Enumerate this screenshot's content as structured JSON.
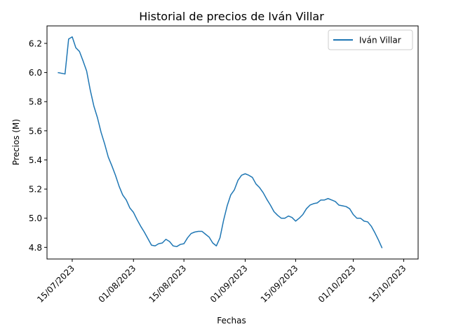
{
  "chart_data": {
    "type": "line",
    "title": "Historial de precios de Iván Villar",
    "xlabel": "Fechas",
    "ylabel": "Precios (M)",
    "x_tick_labels": [
      "15/07/2023",
      "01/08/2023",
      "15/08/2023",
      "01/09/2023",
      "15/09/2023",
      "01/10/2023",
      "15/10/2023"
    ],
    "y_tick_labels": [
      "4.8",
      "5.0",
      "5.2",
      "5.4",
      "5.6",
      "5.8",
      "6.0",
      "6.2"
    ],
    "ylim": [
      4.72,
      6.32
    ],
    "xlim": [
      "2023-07-08",
      "2023-10-19"
    ],
    "grid": false,
    "legend_position": "top-right",
    "series": [
      {
        "name": "Iván Villar",
        "color": "#1f77b4",
        "points": [
          [
            "2023-07-11",
            6.0
          ],
          [
            "2023-07-13",
            5.99
          ],
          [
            "2023-07-14",
            6.23
          ],
          [
            "2023-07-15",
            6.245
          ],
          [
            "2023-07-16",
            6.17
          ],
          [
            "2023-07-17",
            6.145
          ],
          [
            "2023-07-18",
            6.08
          ],
          [
            "2023-07-19",
            6.01
          ],
          [
            "2023-07-20",
            5.88
          ],
          [
            "2023-07-21",
            5.77
          ],
          [
            "2023-07-22",
            5.69
          ],
          [
            "2023-07-23",
            5.59
          ],
          [
            "2023-07-24",
            5.51
          ],
          [
            "2023-07-25",
            5.42
          ],
          [
            "2023-07-26",
            5.36
          ],
          [
            "2023-07-27",
            5.295
          ],
          [
            "2023-07-28",
            5.22
          ],
          [
            "2023-07-29",
            5.16
          ],
          [
            "2023-07-30",
            5.125
          ],
          [
            "2023-07-31",
            5.07
          ],
          [
            "2023-08-01",
            5.04
          ],
          [
            "2023-08-02",
            4.99
          ],
          [
            "2023-08-03",
            4.945
          ],
          [
            "2023-08-04",
            4.905
          ],
          [
            "2023-08-05",
            4.86
          ],
          [
            "2023-08-06",
            4.815
          ],
          [
            "2023-08-07",
            4.81
          ],
          [
            "2023-08-08",
            4.825
          ],
          [
            "2023-08-09",
            4.83
          ],
          [
            "2023-08-10",
            4.855
          ],
          [
            "2023-08-11",
            4.84
          ],
          [
            "2023-08-12",
            4.81
          ],
          [
            "2023-08-13",
            4.805
          ],
          [
            "2023-08-14",
            4.82
          ],
          [
            "2023-08-15",
            4.825
          ],
          [
            "2023-08-16",
            4.865
          ],
          [
            "2023-08-17",
            4.895
          ],
          [
            "2023-08-18",
            4.905
          ],
          [
            "2023-08-19",
            4.91
          ],
          [
            "2023-08-20",
            4.91
          ],
          [
            "2023-08-21",
            4.89
          ],
          [
            "2023-08-22",
            4.87
          ],
          [
            "2023-08-23",
            4.83
          ],
          [
            "2023-08-24",
            4.81
          ],
          [
            "2023-08-25",
            4.865
          ],
          [
            "2023-08-26",
            4.985
          ],
          [
            "2023-08-27",
            5.085
          ],
          [
            "2023-08-28",
            5.16
          ],
          [
            "2023-08-29",
            5.195
          ],
          [
            "2023-08-30",
            5.26
          ],
          [
            "2023-08-31",
            5.295
          ],
          [
            "2023-09-01",
            5.305
          ],
          [
            "2023-09-02",
            5.295
          ],
          [
            "2023-09-03",
            5.28
          ],
          [
            "2023-09-04",
            5.235
          ],
          [
            "2023-09-05",
            5.21
          ],
          [
            "2023-09-06",
            5.175
          ],
          [
            "2023-09-07",
            5.13
          ],
          [
            "2023-09-08",
            5.09
          ],
          [
            "2023-09-09",
            5.045
          ],
          [
            "2023-09-10",
            5.02
          ],
          [
            "2023-09-11",
            5.0
          ],
          [
            "2023-09-12",
            5.0
          ],
          [
            "2023-09-13",
            5.015
          ],
          [
            "2023-09-14",
            5.005
          ],
          [
            "2023-09-15",
            4.98
          ],
          [
            "2023-09-16",
            5.0
          ],
          [
            "2023-09-17",
            5.025
          ],
          [
            "2023-09-18",
            5.065
          ],
          [
            "2023-09-19",
            5.09
          ],
          [
            "2023-09-20",
            5.1
          ],
          [
            "2023-09-21",
            5.105
          ],
          [
            "2023-09-22",
            5.125
          ],
          [
            "2023-09-23",
            5.125
          ],
          [
            "2023-09-24",
            5.135
          ],
          [
            "2023-09-25",
            5.125
          ],
          [
            "2023-09-26",
            5.115
          ],
          [
            "2023-09-27",
            5.09
          ],
          [
            "2023-09-28",
            5.085
          ],
          [
            "2023-09-29",
            5.08
          ],
          [
            "2023-09-30",
            5.065
          ],
          [
            "2023-10-01",
            5.025
          ],
          [
            "2023-10-02",
            5.0
          ],
          [
            "2023-10-03",
            5.0
          ],
          [
            "2023-10-04",
            4.98
          ],
          [
            "2023-10-05",
            4.975
          ],
          [
            "2023-10-06",
            4.945
          ],
          [
            "2023-10-07",
            4.9
          ],
          [
            "2023-10-08",
            4.85
          ],
          [
            "2023-10-09",
            4.795
          ]
        ]
      }
    ]
  }
}
